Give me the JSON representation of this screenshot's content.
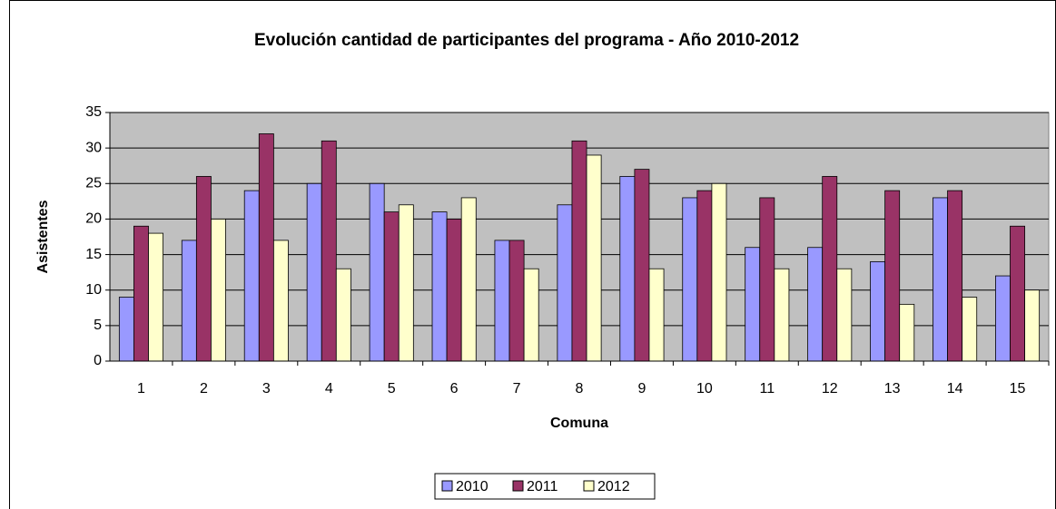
{
  "chart_data": {
    "type": "bar",
    "title": "Evolución cantidad de participantes del programa - Año 2010-2012",
    "x_label": "Comuna",
    "y_label": "Asistentes",
    "categories": [
      "1",
      "2",
      "3",
      "4",
      "5",
      "6",
      "7",
      "8",
      "9",
      "10",
      "11",
      "12",
      "13",
      "14",
      "15"
    ],
    "series": [
      {
        "name": "2010",
        "color": "#9999ff",
        "values": [
          9,
          17,
          24,
          25,
          25,
          21,
          17,
          22,
          26,
          23,
          16,
          16,
          14,
          23,
          12
        ]
      },
      {
        "name": "2011",
        "color": "#993366",
        "values": [
          19,
          26,
          32,
          31,
          21,
          20,
          17,
          31,
          27,
          24,
          23,
          26,
          24,
          24,
          19
        ]
      },
      {
        "name": "2012",
        "color": "#ffffcc",
        "values": [
          18,
          20,
          17,
          13,
          22,
          23,
          13,
          29,
          13,
          25,
          13,
          13,
          8,
          9,
          10
        ]
      }
    ],
    "ylim": [
      0,
      35
    ],
    "yticks": [
      0,
      5,
      10,
      15,
      20,
      25,
      30,
      35
    ],
    "grid": true,
    "legend": "bottom"
  }
}
